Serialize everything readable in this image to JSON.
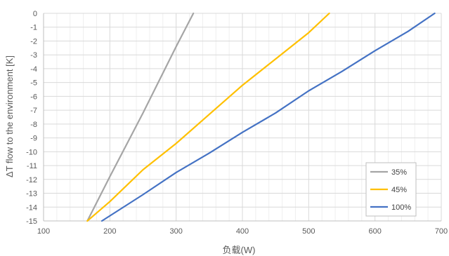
{
  "chart_data": {
    "type": "line",
    "xlabel": "负载(W)",
    "ylabel": "ΔT flow to the environment [K]",
    "xlim": [
      100,
      700
    ],
    "ylim": [
      -15,
      0
    ],
    "x_ticks": [
      "100",
      "200",
      "300",
      "400",
      "500",
      "600",
      "700"
    ],
    "y_ticks": [
      "0",
      "-1",
      "-2",
      "-3",
      "-4",
      "-5",
      "-6",
      "-7",
      "-8",
      "-9",
      "-10",
      "-11",
      "-12",
      "-13",
      "-14",
      "-15"
    ],
    "grid": true,
    "legend_position": "bottom-right",
    "series": [
      {
        "name": "35%",
        "color": "#a5a5a5",
        "x": [
          166,
          200,
          250,
          300,
          326
        ],
        "y": [
          -15,
          -11.8,
          -7.2,
          -2.4,
          0
        ]
      },
      {
        "name": "45%",
        "color": "#ffc000",
        "x": [
          166,
          200,
          250,
          300,
          350,
          400,
          450,
          500,
          531
        ],
        "y": [
          -15,
          -13.6,
          -11.3,
          -9.4,
          -7.3,
          -5.2,
          -3.3,
          -1.4,
          0
        ]
      },
      {
        "name": "100%",
        "color": "#4472c4",
        "x": [
          188,
          250,
          300,
          350,
          400,
          450,
          500,
          550,
          600,
          650,
          690
        ],
        "y": [
          -15,
          -13.1,
          -11.5,
          -10.1,
          -8.6,
          -7.2,
          -5.6,
          -4.2,
          -2.7,
          -1.3,
          0
        ]
      }
    ]
  }
}
